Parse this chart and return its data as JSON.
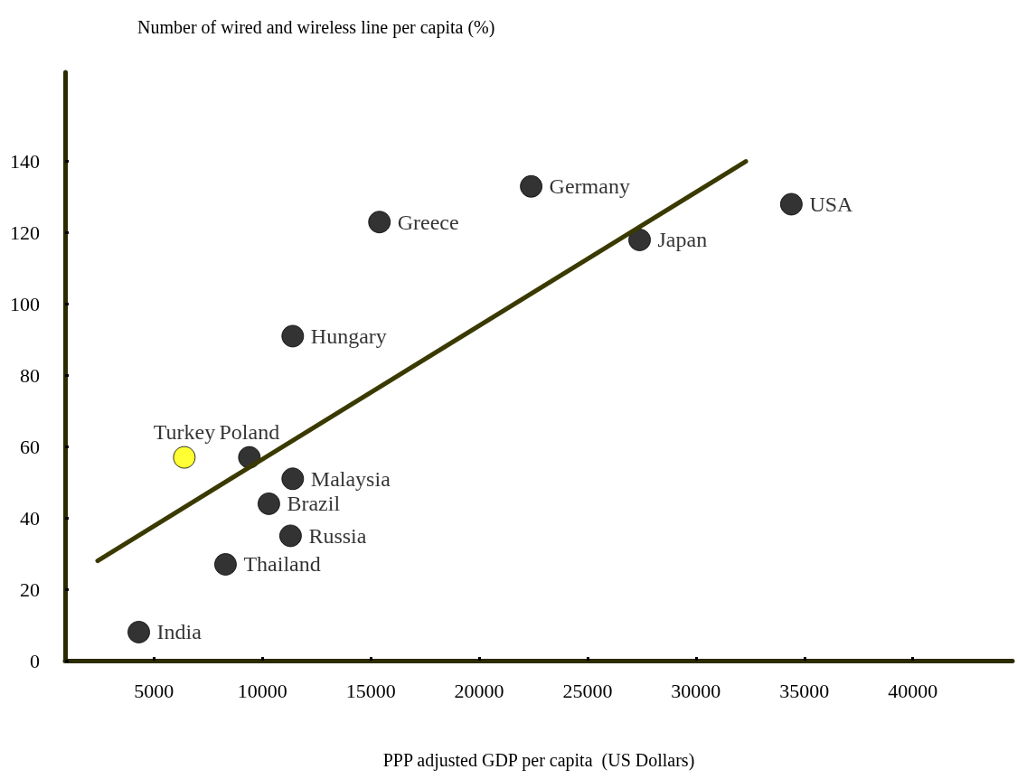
{
  "chart_data": {
    "type": "scatter",
    "xlabel": "PPP adjusted GDP per capita  (US Dollars)",
    "ylabel": "Number of wired and wireless line per capita (%)",
    "xlim": [
      900,
      44600
    ],
    "xticks": [
      5000,
      10000,
      15000,
      20000,
      25000,
      30000,
      35000,
      40000
    ],
    "ylim": [
      0,
      165
    ],
    "yticks": [
      0,
      20,
      40,
      60,
      80,
      100,
      120,
      140
    ],
    "grid": false,
    "marker": "circle",
    "series": [
      {
        "x": [
          4300,
          6400,
          8300,
          9400,
          10300,
          11300,
          11400,
          11400,
          15400,
          22400,
          27400,
          34400
        ],
        "values": [
          8,
          57,
          27,
          57,
          44,
          35,
          51,
          91,
          123,
          133,
          118,
          128
        ],
        "colors": [
          "#000000",
          "#ffff00",
          "#000000",
          "#000000",
          "#000000",
          "#000000",
          "#000000",
          "#000000",
          "#000000",
          "#000000",
          "#000000",
          "#000000"
        ]
      },
      {
        "type": "line",
        "x": [
          2400,
          32300
        ],
        "values": [
          28,
          140
        ],
        "color": "#3a3a00",
        "marker": "none"
      }
    ],
    "annotations": [
      {
        "text": "India",
        "x": 4300,
        "y": 8
      },
      {
        "text": "Turkey",
        "x": 6400,
        "y": 57
      },
      {
        "text": "Thailand",
        "x": 8300,
        "y": 27
      },
      {
        "text": "Poland",
        "x": 9400,
        "y": 57
      },
      {
        "text": "Brazil",
        "x": 10300,
        "y": 44
      },
      {
        "text": "Russia",
        "x": 11300,
        "y": 35
      },
      {
        "text": "Malaysia",
        "x": 11400,
        "y": 51
      },
      {
        "text": "Hungary",
        "x": 11400,
        "y": 91
      },
      {
        "text": "Greece",
        "x": 15400,
        "y": 123
      },
      {
        "text": "Germany",
        "x": 22400,
        "y": 133
      },
      {
        "text": "Japan",
        "x": 27400,
        "y": 118
      },
      {
        "text": "USA",
        "x": 34400,
        "y": 128
      }
    ]
  }
}
